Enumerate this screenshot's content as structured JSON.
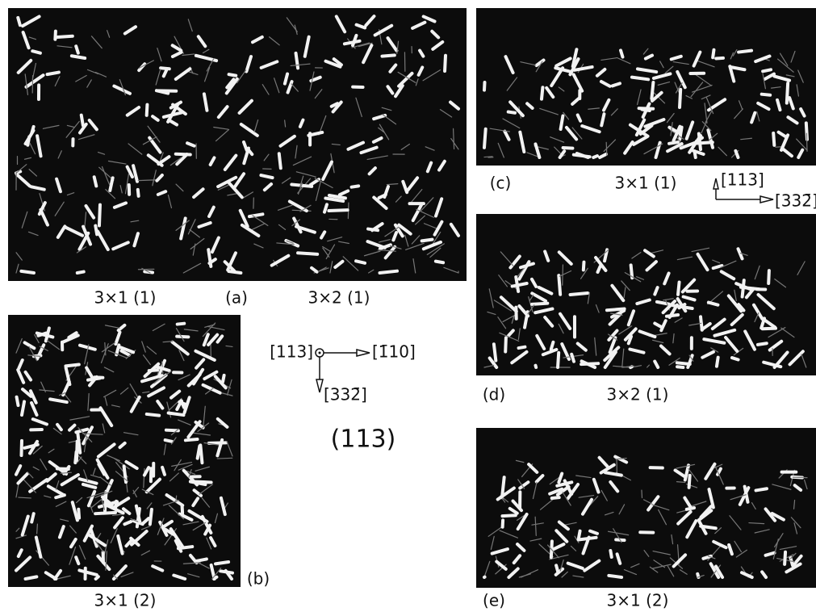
{
  "panels": [
    {
      "label": "(a)",
      "captions": [
        "3×1 (1)",
        "3×2 (1)"
      ]
    },
    {
      "label": "(b)",
      "captions": [
        "3×1 (2)"
      ]
    },
    {
      "label": "(c)",
      "captions": [
        "3×1 (1)"
      ]
    },
    {
      "label": "(d)",
      "captions": [
        "3×2 (1)"
      ]
    },
    {
      "label": "(e)",
      "captions": [
        "3×1 (2)"
      ]
    }
  ],
  "directions": {
    "top_view": {
      "normal": "[113]",
      "right": "[1̄10]",
      "down": "[332̄]"
    },
    "side_view": {
      "up": "[113]",
      "right": "[332̄]"
    }
  },
  "surface": "(113)"
}
